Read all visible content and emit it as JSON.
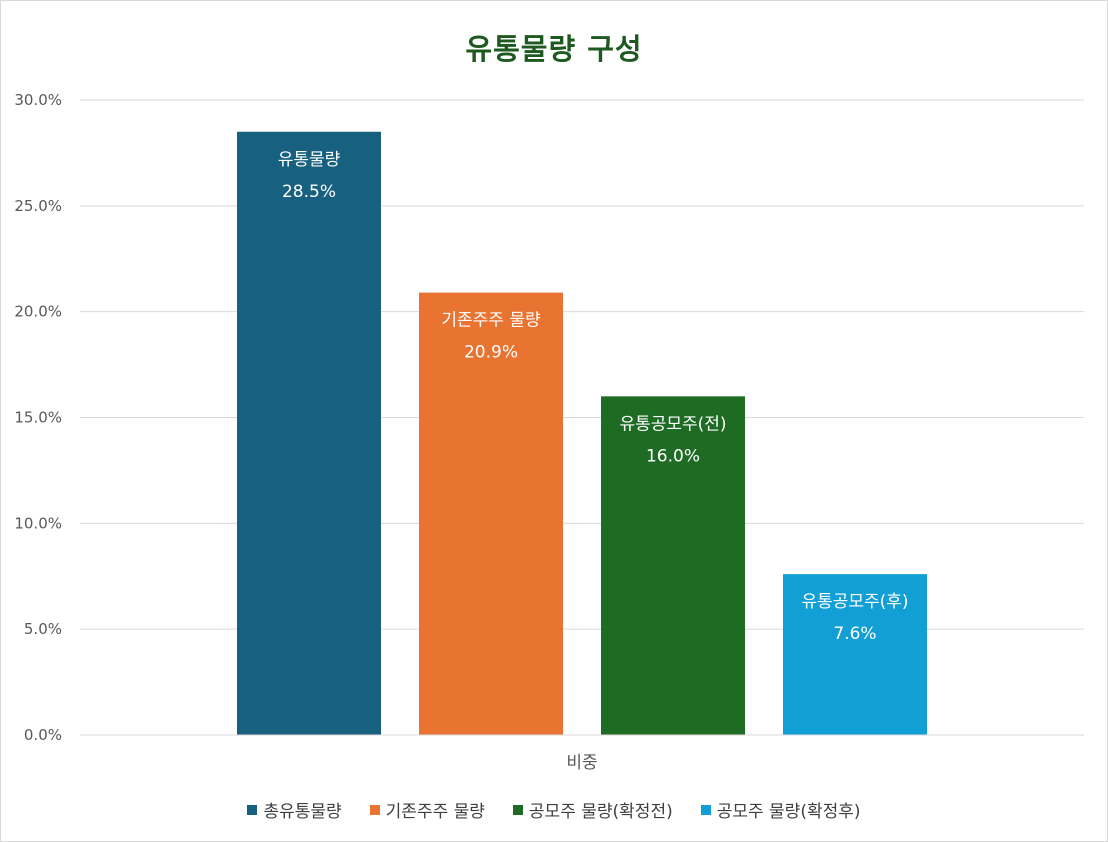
{
  "chart_data": {
    "type": "bar",
    "title": "유통물량 구성",
    "categories": [
      "비중"
    ],
    "series": [
      {
        "name": "총유통물량",
        "value": 28.5,
        "data_label_name": "유통물량",
        "data_label_value": "28.5%",
        "color": "#17607f"
      },
      {
        "name": "기존주주 물량",
        "value": 20.9,
        "data_label_name": "기존주주 물량",
        "data_label_value": "20.9%",
        "color": "#e97432"
      },
      {
        "name": "공모주 물량(확정전)",
        "value": 16.0,
        "data_label_name": "유통공모주(전)",
        "data_label_value": "16.0%",
        "color": "#1e6b24"
      },
      {
        "name": "공모주 물량(확정후)",
        "value": 7.6,
        "data_label_name": "유통공모주(후)",
        "data_label_value": "7.6%",
        "color": "#119fd6"
      }
    ],
    "ylim": [
      0,
      30
    ],
    "yticks": [
      "0.0%",
      "5.0%",
      "10.0%",
      "15.0%",
      "20.0%",
      "25.0%",
      "30.0%"
    ],
    "ytick_values": [
      0,
      5,
      10,
      15,
      20,
      25,
      30
    ],
    "grid": true,
    "legend_position": "bottom"
  }
}
